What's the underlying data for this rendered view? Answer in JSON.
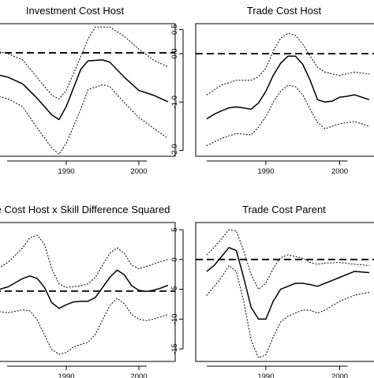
{
  "chart_data": [
    {
      "type": "line",
      "title": "Investment Cost Host",
      "x_ticks": [
        1990,
        2000
      ],
      "y_ticks": [],
      "xlim": [
        1980,
        2005
      ],
      "ylim": [
        -2.2,
        0.62
      ],
      "reference_line": 0,
      "series": [
        {
          "style": "solid",
          "x": [
            1980,
            1982,
            1984,
            1986,
            1988,
            1989,
            1990,
            1992,
            1993,
            1995,
            1996,
            1998,
            2000,
            2002,
            2004
          ],
          "y": [
            -0.45,
            -0.52,
            -0.66,
            -0.97,
            -1.32,
            -1.42,
            -1.14,
            -0.35,
            -0.17,
            -0.15,
            -0.2,
            -0.52,
            -0.8,
            -0.9,
            -1.04
          ]
        },
        {
          "style": "dotted",
          "x": [
            1980,
            1982,
            1984,
            1986,
            1988,
            1989,
            1990,
            1992,
            1993,
            1994,
            1996,
            1998,
            2000,
            2002,
            2004
          ],
          "y": [
            0.05,
            -0.02,
            -0.15,
            -0.53,
            -0.9,
            -0.98,
            -0.8,
            -0.08,
            0.3,
            0.55,
            0.55,
            0.35,
            0.08,
            -0.15,
            -0.3
          ]
        },
        {
          "style": "dotted",
          "x": [
            1980,
            1982,
            1984,
            1986,
            1988,
            1989,
            1990,
            1992,
            1993,
            1995,
            1996,
            1998,
            2000,
            2002,
            2004
          ],
          "y": [
            -0.9,
            -0.98,
            -1.15,
            -1.6,
            -2.02,
            -2.16,
            -1.92,
            -1.2,
            -0.78,
            -0.68,
            -0.72,
            -1.06,
            -1.38,
            -1.6,
            -1.82
          ]
        }
      ]
    },
    {
      "type": "line",
      "title": "Trade Cost Host",
      "x_ticks": [
        1990,
        2000
      ],
      "y_ticks": [
        "0.5",
        "0.0",
        "-1.0",
        "-2.0"
      ],
      "y_tick_values": [
        0.5,
        0.0,
        -1.0,
        -2.0
      ],
      "xlim": [
        1980.5,
        2005.5
      ],
      "ylim": [
        -2.12,
        0.62
      ],
      "reference_line": 0,
      "series": [
        {
          "style": "solid",
          "x": [
            1982,
            1983,
            1984,
            1985,
            1986,
            1987,
            1988,
            1989,
            1990,
            1991,
            1992,
            1993,
            1994,
            1995,
            1996,
            1997,
            1998,
            1999,
            2000,
            2001,
            2002,
            2004
          ],
          "y": [
            -1.35,
            -1.25,
            -1.18,
            -1.12,
            -1.1,
            -1.12,
            -1.15,
            -1.02,
            -0.78,
            -0.45,
            -0.2,
            -0.05,
            -0.05,
            -0.22,
            -0.55,
            -0.95,
            -1.0,
            -0.98,
            -0.9,
            -0.88,
            -0.85,
            -0.95
          ]
        },
        {
          "style": "dotted",
          "x": [
            1982,
            1984,
            1986,
            1988,
            1989,
            1990,
            1991,
            1992,
            1993,
            1994,
            1995,
            1996,
            1997,
            1998,
            1999,
            2000,
            2002,
            2004
          ],
          "y": [
            -0.85,
            -0.65,
            -0.55,
            -0.55,
            -0.48,
            -0.3,
            0.05,
            0.32,
            0.42,
            0.38,
            0.2,
            -0.05,
            -0.28,
            -0.38,
            -0.42,
            -0.45,
            -0.38,
            -0.42
          ]
        },
        {
          "style": "dotted",
          "x": [
            1982,
            1984,
            1986,
            1988,
            1989,
            1990,
            1991,
            1992,
            1993,
            1994,
            1995,
            1996,
            1997,
            1998,
            2000,
            2002,
            2004
          ],
          "y": [
            -1.9,
            -1.75,
            -1.65,
            -1.68,
            -1.52,
            -1.3,
            -1.0,
            -0.78,
            -0.65,
            -0.68,
            -0.85,
            -1.15,
            -1.42,
            -1.55,
            -1.45,
            -1.4,
            -1.5
          ]
        }
      ]
    },
    {
      "type": "line",
      "title": "e Cost Host x Skill Difference Squared",
      "x_ticks": [
        1990,
        2000
      ],
      "y_ticks": [],
      "xlim": [
        1980,
        2005
      ],
      "ylim": [
        -1.95,
        1.9
      ],
      "reference_line": 0,
      "series": [
        {
          "style": "solid",
          "x": [
            1980,
            1982,
            1984,
            1985,
            1986,
            1987,
            1988,
            1989,
            1990,
            1991,
            1992,
            1993,
            1994,
            1995,
            1996,
            1997,
            1998,
            1999,
            2000,
            2001,
            2002,
            2003,
            2004
          ],
          "y": [
            0.0,
            0.12,
            0.35,
            0.42,
            0.35,
            0.1,
            -0.32,
            -0.48,
            -0.38,
            -0.3,
            -0.28,
            -0.28,
            -0.18,
            0.1,
            0.38,
            0.58,
            0.45,
            0.15,
            0.02,
            -0.01,
            0.02,
            0.08,
            0.16
          ]
        },
        {
          "style": "dotted",
          "x": [
            1980,
            1982,
            1984,
            1985,
            1986,
            1987,
            1988,
            1989,
            1990,
            1991,
            1992,
            1993,
            1994,
            1995,
            1996,
            1997,
            1998,
            1999,
            2000,
            2001,
            2002,
            2004
          ],
          "y": [
            0.55,
            0.8,
            1.2,
            1.48,
            1.55,
            1.3,
            0.62,
            0.2,
            0.1,
            0.12,
            0.15,
            0.2,
            0.38,
            0.72,
            1.05,
            1.2,
            1.05,
            0.72,
            0.62,
            0.68,
            0.75,
            0.88
          ]
        },
        {
          "style": "dotted",
          "x": [
            1980,
            1982,
            1984,
            1985,
            1986,
            1987,
            1988,
            1989,
            1990,
            1991,
            1992,
            1993,
            1994,
            1995,
            1996,
            1997,
            1998,
            1999,
            2000,
            2001,
            2002,
            2004
          ],
          "y": [
            -0.55,
            -0.6,
            -0.52,
            -0.55,
            -0.8,
            -1.22,
            -1.62,
            -1.75,
            -1.7,
            -1.55,
            -1.48,
            -1.42,
            -1.2,
            -0.8,
            -0.4,
            -0.2,
            -0.35,
            -0.65,
            -0.78,
            -0.82,
            -0.78,
            -0.65
          ]
        }
      ]
    },
    {
      "type": "line",
      "title": "Trade Cost Parent",
      "x_ticks": [
        1990,
        2000
      ],
      "y_ticks": [
        "5",
        "0",
        "-5",
        "-10",
        "-15"
      ],
      "y_tick_values": [
        5,
        0,
        -5,
        -10,
        -15
      ],
      "xlim": [
        1980.5,
        2005.5
      ],
      "ylim": [
        -17.1,
        6.2
      ],
      "reference_line": 0,
      "series": [
        {
          "style": "solid",
          "x": [
            1982,
            1983,
            1984,
            1985,
            1986,
            1987,
            1988,
            1989,
            1990,
            1991,
            1992,
            1993,
            1994,
            1995,
            1996,
            1997,
            1998,
            1999,
            2000,
            2001,
            2002,
            2004
          ],
          "y": [
            -2.0,
            -1.0,
            0.5,
            2.0,
            1.5,
            -3.0,
            -8.0,
            -10.0,
            -10.0,
            -7.0,
            -5.0,
            -4.5,
            -4.0,
            -4.0,
            -4.2,
            -4.5,
            -4.0,
            -3.5,
            -3.0,
            -2.5,
            -2.0,
            -2.2
          ]
        },
        {
          "style": "dotted",
          "x": [
            1982,
            1983,
            1984,
            1985,
            1986,
            1987,
            1988,
            1989,
            1990,
            1991,
            1992,
            1993,
            1994,
            1995,
            1996,
            1997,
            1998,
            2000,
            2002,
            2004
          ],
          "y": [
            0.8,
            2.0,
            3.5,
            5.0,
            4.8,
            1.5,
            -2.5,
            -5.0,
            -4.0,
            -1.5,
            0.3,
            0.8,
            0.5,
            0.2,
            -0.5,
            -0.8,
            -0.6,
            -0.5,
            -0.8,
            -1.0
          ]
        },
        {
          "style": "dotted",
          "x": [
            1982,
            1983,
            1984,
            1985,
            1986,
            1987,
            1988,
            1989,
            1990,
            1991,
            1992,
            1993,
            1994,
            1995,
            1996,
            1997,
            1998,
            2000,
            2002,
            2004
          ],
          "y": [
            -6.0,
            -4.5,
            -3.0,
            -1.0,
            -2.0,
            -7.0,
            -13.5,
            -16.5,
            -16.0,
            -13.0,
            -10.5,
            -9.5,
            -9.0,
            -8.5,
            -8.5,
            -9.0,
            -8.5,
            -7.0,
            -6.0,
            -5.5
          ]
        }
      ]
    }
  ]
}
